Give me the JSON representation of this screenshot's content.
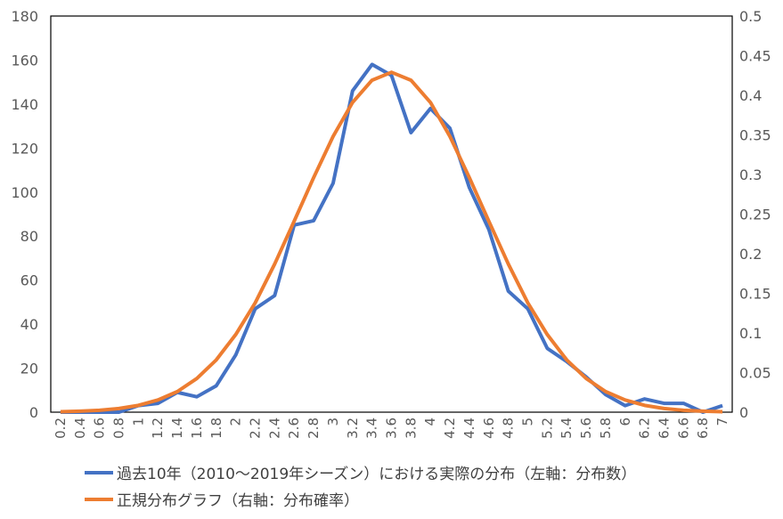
{
  "chart_data": {
    "type": "line",
    "categories": [
      "0.2",
      "0.4",
      "0.6",
      "0.8",
      "1",
      "1.2",
      "1.4",
      "1.6",
      "1.8",
      "2",
      "2.2",
      "2.4",
      "2.6",
      "2.8",
      "3",
      "3.2",
      "3.4",
      "3.6",
      "3.8",
      "4",
      "4.2",
      "4.4",
      "4.6",
      "4.8",
      "5",
      "5.2",
      "5.4",
      "5.6",
      "5.8",
      "6",
      "6.2",
      "6.4",
      "6.6",
      "6.8",
      "7"
    ],
    "left_axis": {
      "ylim": [
        0,
        180
      ],
      "ticks": [
        "0",
        "20",
        "40",
        "60",
        "80",
        "100",
        "120",
        "140",
        "160",
        "180"
      ]
    },
    "right_axis": {
      "ylim": [
        0,
        0.5
      ],
      "ticks": [
        "0",
        "0.05",
        "0.1",
        "0.15",
        "0.2",
        "0.25",
        "0.3",
        "0.35",
        "0.4",
        "0.45",
        "0.5"
      ]
    },
    "grid": false,
    "legend_placement": "bottom",
    "series": [
      {
        "name": "過去10年（2010～2019年シーズン）における実際の分布（左軸：分布数）",
        "axis": "left",
        "color": "#4472C4",
        "values": [
          0,
          0,
          0,
          0,
          3,
          4,
          9,
          7,
          12,
          26,
          47,
          53,
          85,
          87,
          104,
          146,
          158,
          153,
          127,
          138,
          129,
          102,
          83,
          55,
          47,
          29,
          23,
          16,
          8,
          3,
          6,
          4,
          4,
          0,
          3
        ]
      },
      {
        "name": "正規分布グラフ（右軸：分布確率）",
        "axis": "right",
        "color": "#ED7D31",
        "values": [
          0.0005,
          0.0012,
          0.0024,
          0.0046,
          0.0086,
          0.0154,
          0.026,
          0.0425,
          0.066,
          0.098,
          0.138,
          0.187,
          0.241,
          0.296,
          0.348,
          0.391,
          0.419,
          0.429,
          0.419,
          0.391,
          0.348,
          0.296,
          0.241,
          0.187,
          0.138,
          0.098,
          0.066,
          0.0425,
          0.026,
          0.0154,
          0.0086,
          0.0046,
          0.0024,
          0.0012,
          0.0005
        ]
      }
    ]
  }
}
